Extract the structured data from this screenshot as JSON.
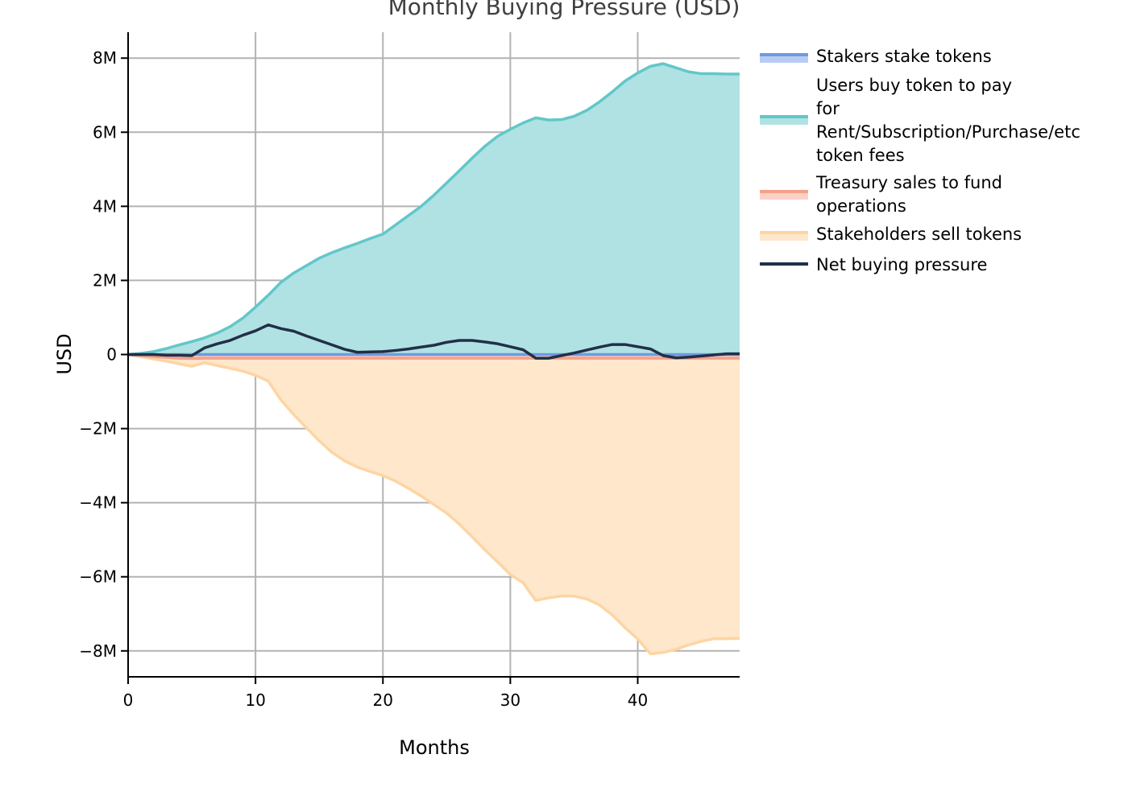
{
  "chart_data": {
    "type": "area",
    "title": "Monthly Buying Pressure (USD)",
    "xlabel": "Months",
    "ylabel": "USD",
    "xlim": [
      0,
      48
    ],
    "ylim": [
      -8700000,
      8700000
    ],
    "xticks": [
      0,
      10,
      20,
      30,
      40
    ],
    "xtick_labels": [
      "0",
      "10",
      "20",
      "30",
      "40"
    ],
    "yticks": [
      -8000000,
      -6000000,
      -4000000,
      -2000000,
      0,
      2000000,
      4000000,
      6000000,
      8000000
    ],
    "ytick_labels": [
      "−8M",
      "−6M",
      "−4M",
      "−2M",
      "0",
      "2M",
      "4M",
      "6M",
      "8M"
    ],
    "grid": true,
    "legend_position": "right",
    "x": [
      0,
      1,
      2,
      3,
      4,
      5,
      6,
      7,
      8,
      9,
      10,
      11,
      12,
      13,
      14,
      15,
      16,
      17,
      18,
      19,
      20,
      21,
      22,
      23,
      24,
      25,
      26,
      27,
      28,
      29,
      30,
      31,
      32,
      33,
      34,
      35,
      36,
      37,
      38,
      39,
      40,
      41,
      42,
      43,
      44,
      45,
      46,
      47,
      48
    ],
    "series": [
      {
        "name": "Stakers stake tokens",
        "line_color": "#6f9ae0",
        "fill_color": "#b8ccf3",
        "values": [
          0,
          0,
          0,
          0,
          0,
          0,
          0,
          0,
          0,
          0,
          0,
          0,
          0,
          0,
          0,
          0,
          0,
          0,
          0,
          0,
          0,
          0,
          0,
          0,
          0,
          0,
          0,
          0,
          0,
          0,
          0,
          0,
          0,
          0,
          0,
          0,
          0,
          0,
          0,
          0,
          0,
          0,
          0,
          0,
          0,
          0,
          0,
          0,
          0
        ]
      },
      {
        "name": "Users buy token to pay for Rent/Subscription/Purchase/etc token fees",
        "legend_lines": [
          "Users buy token to pay",
          "for",
          "Rent/Subscription/Purchase/etc",
          "token fees"
        ],
        "line_color": "#62c7c9",
        "fill_color": "#b0e2e3",
        "values": [
          0,
          30000,
          80000,
          160000,
          260000,
          350000,
          450000,
          580000,
          750000,
          980000,
          1280000,
          1600000,
          1950000,
          2200000,
          2400000,
          2600000,
          2750000,
          2880000,
          3000000,
          3130000,
          3250000,
          3500000,
          3750000,
          4000000,
          4300000,
          4630000,
          4960000,
          5300000,
          5620000,
          5890000,
          6080000,
          6250000,
          6390000,
          6330000,
          6340000,
          6430000,
          6590000,
          6820000,
          7090000,
          7380000,
          7600000,
          7780000,
          7850000,
          7740000,
          7630000,
          7580000,
          7580000,
          7570000,
          7570000
        ]
      },
      {
        "name": "Treasury sales to fund operations",
        "legend_lines": [
          "Treasury sales to fund",
          "operations"
        ],
        "line_color": "#f4a08a",
        "fill_color": "#fcd0c6",
        "values": [
          0,
          -30000,
          -60000,
          -80000,
          -100000,
          -110000,
          -100000,
          -100000,
          -100000,
          -100000,
          -100000,
          -100000,
          -100000,
          -100000,
          -100000,
          -100000,
          -100000,
          -100000,
          -100000,
          -100000,
          -100000,
          -100000,
          -100000,
          -100000,
          -100000,
          -100000,
          -100000,
          -100000,
          -100000,
          -100000,
          -100000,
          -100000,
          -100000,
          -100000,
          -100000,
          -100000,
          -100000,
          -100000,
          -100000,
          -100000,
          -100000,
          -100000,
          -100000,
          -100000,
          -100000,
          -100000,
          -100000,
          -100000,
          -100000
        ]
      },
      {
        "name": "Stakeholders sell tokens",
        "line_color": "#fdd5a3",
        "fill_color": "#fee7cb",
        "values": [
          0,
          -60000,
          -120000,
          -180000,
          -250000,
          -320000,
          -220000,
          -300000,
          -370000,
          -450000,
          -560000,
          -720000,
          -1230000,
          -1620000,
          -1980000,
          -2330000,
          -2640000,
          -2870000,
          -3040000,
          -3160000,
          -3270000,
          -3420000,
          -3610000,
          -3820000,
          -4050000,
          -4280000,
          -4580000,
          -4920000,
          -5270000,
          -5600000,
          -5940000,
          -6160000,
          -6640000,
          -6570000,
          -6520000,
          -6520000,
          -6600000,
          -6760000,
          -7030000,
          -7370000,
          -7680000,
          -8080000,
          -8040000,
          -7960000,
          -7840000,
          -7740000,
          -7670000,
          -7670000,
          -7660000
        ]
      },
      {
        "name": "Net buying pressure",
        "line_color": "#222f48",
        "values": [
          0,
          0,
          0,
          -20000,
          -20000,
          -30000,
          180000,
          290000,
          380000,
          520000,
          640000,
          800000,
          700000,
          630000,
          500000,
          380000,
          260000,
          140000,
          60000,
          70000,
          80000,
          110000,
          150000,
          200000,
          250000,
          330000,
          380000,
          380000,
          340000,
          290000,
          210000,
          130000,
          -100000,
          -100000,
          -30000,
          40000,
          120000,
          200000,
          270000,
          270000,
          210000,
          150000,
          -30000,
          -90000,
          -70000,
          -40000,
          -10000,
          20000,
          20000
        ]
      }
    ]
  }
}
